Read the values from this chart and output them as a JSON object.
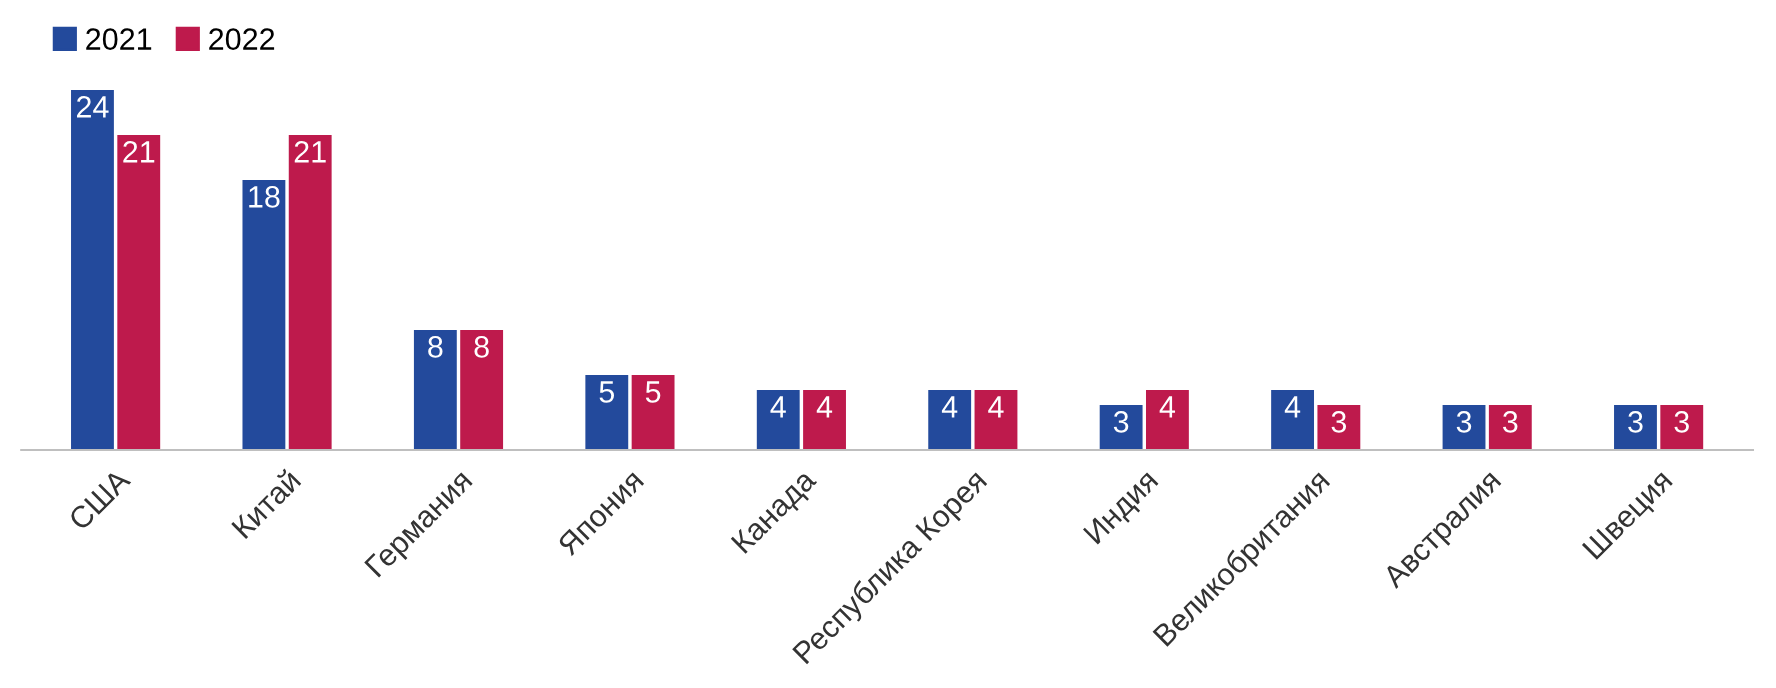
{
  "chart_data": {
    "type": "bar",
    "categories": [
      "США",
      "Китай",
      "Германия",
      "Япония",
      "Канада",
      "Республика Корея",
      "Индия",
      "Великобритания",
      "Австралия",
      "Швеция"
    ],
    "series": [
      {
        "name": "2021",
        "color": "#234a9c",
        "values": [
          24,
          18,
          8,
          5,
          4,
          4,
          3,
          4,
          3,
          3
        ]
      },
      {
        "name": "2022",
        "color": "#be1a4c",
        "values": [
          21,
          21,
          8,
          5,
          4,
          4,
          4,
          3,
          3,
          3
        ]
      }
    ],
    "data_labels": true,
    "legend": "top left",
    "grid": false
  }
}
